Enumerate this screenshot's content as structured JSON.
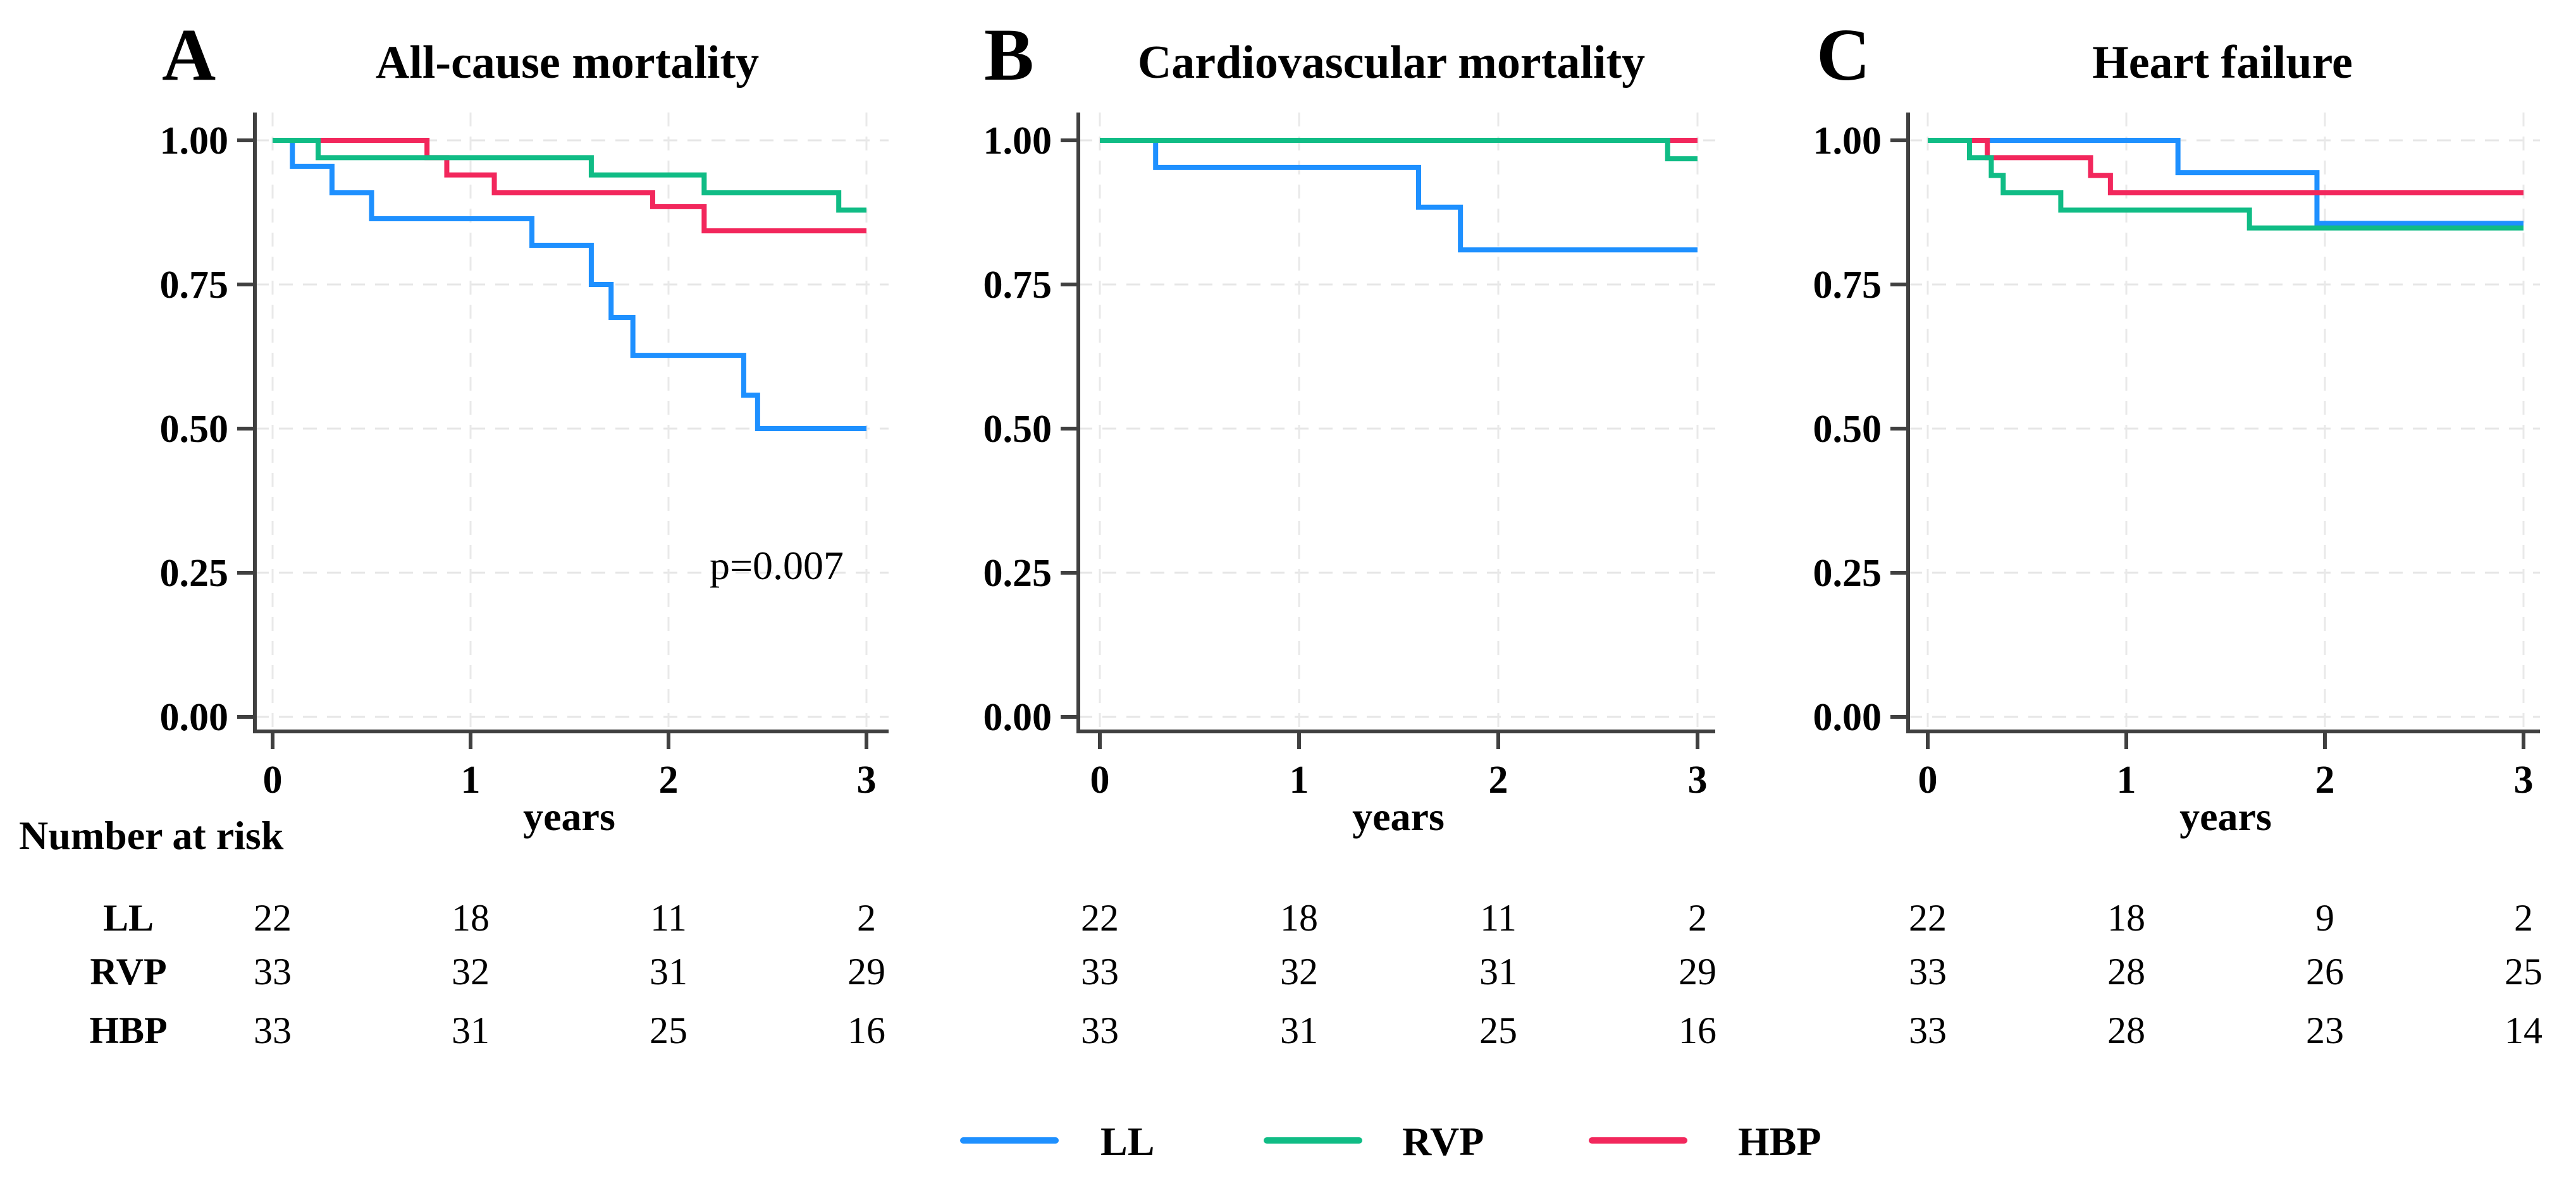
{
  "figure": {
    "background": "#FFFFFF",
    "risk_table": {
      "heading": "Number at risk",
      "row_labels": [
        "LL",
        "RVP",
        "HBP"
      ]
    },
    "legend": {
      "position": "bottom-center",
      "items": [
        {
          "label": "LL",
          "color": "#1E90FF"
        },
        {
          "label": "RVP",
          "color": "#10BC85"
        },
        {
          "label": "HBP",
          "color": "#F2275C"
        }
      ]
    }
  },
  "chart_data": [
    {
      "type": "line",
      "style": "kaplan-meier-step",
      "panel_letter": "A",
      "title": "All-cause mortality",
      "annotation": "p=0.007",
      "xlabel": "years",
      "xticks": [
        "0",
        "1",
        "2",
        "3"
      ],
      "yticks": [
        "1.00",
        "0.75",
        "0.50",
        "0.25",
        "0.00"
      ],
      "xlim": [
        0,
        3
      ],
      "ylim": [
        0,
        1
      ],
      "grid": true,
      "series": [
        {
          "name": "LL",
          "color": "#1E90FF",
          "steps": [
            [
              0,
              1.0
            ],
            [
              0.1,
              0.955
            ],
            [
              0.3,
              0.909
            ],
            [
              0.5,
              0.864
            ],
            [
              1.31,
              0.818
            ],
            [
              1.61,
              0.75
            ],
            [
              1.71,
              0.693
            ],
            [
              1.82,
              0.627
            ],
            [
              2.38,
              0.558
            ],
            [
              2.45,
              0.5
            ],
            [
              3,
              0.5
            ]
          ]
        },
        {
          "name": "HBP",
          "color": "#F2275C",
          "steps": [
            [
              0,
              1.0
            ],
            [
              0.78,
              0.97
            ],
            [
              0.88,
              0.94
            ],
            [
              1.12,
              0.909
            ],
            [
              1.92,
              0.885
            ],
            [
              2.18,
              0.843
            ],
            [
              3,
              0.843
            ]
          ]
        },
        {
          "name": "RVP",
          "color": "#10BC85",
          "steps": [
            [
              0,
              1.0
            ],
            [
              0.23,
              0.97
            ],
            [
              1.61,
              0.94
            ],
            [
              2.18,
              0.909
            ],
            [
              2.86,
              0.879
            ],
            [
              3,
              0.879
            ]
          ]
        }
      ],
      "number_at_risk": {
        "LL": [
          "22",
          "18",
          "11",
          "2"
        ],
        "RVP": [
          "33",
          "32",
          "31",
          "29"
        ],
        "HBP": [
          "33",
          "31",
          "25",
          "16"
        ]
      }
    },
    {
      "type": "line",
      "style": "kaplan-meier-step",
      "panel_letter": "B",
      "title": "Cardiovascular mortality",
      "annotation": "",
      "xlabel": "years",
      "xticks": [
        "0",
        "1",
        "2",
        "3"
      ],
      "yticks": [
        "1.00",
        "0.75",
        "0.50",
        "0.25",
        "0.00"
      ],
      "xlim": [
        0,
        3
      ],
      "ylim": [
        0,
        1
      ],
      "grid": true,
      "series": [
        {
          "name": "LL",
          "color": "#1E90FF",
          "steps": [
            [
              0,
              1.0
            ],
            [
              0.28,
              0.953
            ],
            [
              1.6,
              0.884
            ],
            [
              1.81,
              0.81
            ],
            [
              3,
              0.81
            ]
          ]
        },
        {
          "name": "HBP",
          "color": "#F2275C",
          "steps": [
            [
              0,
              1.0
            ],
            [
              3,
              1.0
            ]
          ]
        },
        {
          "name": "RVP",
          "color": "#10BC85",
          "steps": [
            [
              0,
              1.0
            ],
            [
              2.85,
              0.968
            ],
            [
              3,
              0.968
            ]
          ]
        }
      ],
      "number_at_risk": {
        "LL": [
          "22",
          "18",
          "11",
          "2"
        ],
        "RVP": [
          "33",
          "32",
          "31",
          "29"
        ],
        "HBP": [
          "33",
          "31",
          "25",
          "16"
        ]
      }
    },
    {
      "type": "line",
      "style": "kaplan-meier-step",
      "panel_letter": "C",
      "title": "Heart failure",
      "annotation": "",
      "xlabel": "years",
      "xticks": [
        "0",
        "1",
        "2",
        "3"
      ],
      "yticks": [
        "1.00",
        "0.75",
        "0.50",
        "0.25",
        "0.00"
      ],
      "xlim": [
        0,
        3
      ],
      "ylim": [
        0,
        1
      ],
      "grid": true,
      "series": [
        {
          "name": "LL",
          "color": "#1E90FF",
          "steps": [
            [
              0,
              1.0
            ],
            [
              1.26,
              0.944
            ],
            [
              1.96,
              0.856
            ],
            [
              3,
              0.856
            ]
          ]
        },
        {
          "name": "HBP",
          "color": "#F2275C",
          "steps": [
            [
              0,
              1.0
            ],
            [
              0.3,
              0.97
            ],
            [
              0.82,
              0.939
            ],
            [
              0.92,
              0.909
            ],
            [
              3,
              0.909
            ]
          ]
        },
        {
          "name": "RVP",
          "color": "#10BC85",
          "steps": [
            [
              0,
              1.0
            ],
            [
              0.21,
              0.97
            ],
            [
              0.32,
              0.939
            ],
            [
              0.38,
              0.909
            ],
            [
              0.67,
              0.879
            ],
            [
              1.62,
              0.848
            ],
            [
              3,
              0.848
            ]
          ]
        }
      ],
      "number_at_risk": {
        "LL": [
          "22",
          "18",
          "9",
          "2"
        ],
        "RVP": [
          "33",
          "28",
          "26",
          "25"
        ],
        "HBP": [
          "33",
          "28",
          "23",
          "14"
        ]
      }
    }
  ]
}
